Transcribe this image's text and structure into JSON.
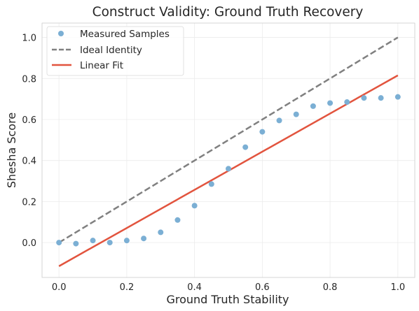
{
  "chart_data": {
    "type": "scatter",
    "title": "Construct Validity: Ground Truth Recovery",
    "xlabel": "Ground Truth Stability",
    "ylabel": "Shesha Score",
    "xlim": [
      -0.05,
      1.05
    ],
    "ylim": [
      -0.17,
      1.07
    ],
    "xticks": [
      "0.0",
      "0.2",
      "0.4",
      "0.6",
      "0.8",
      "1.0"
    ],
    "yticks": [
      "0.0",
      "0.2",
      "0.4",
      "0.6",
      "0.8",
      "1.0"
    ],
    "grid": true,
    "legend_position": "top-left",
    "series": [
      {
        "name": "Measured Samples",
        "kind": "scatter",
        "color": "#7bafd4",
        "x": [
          0.0,
          0.05,
          0.1,
          0.15,
          0.2,
          0.25,
          0.3,
          0.35,
          0.4,
          0.45,
          0.5,
          0.55,
          0.6,
          0.65,
          0.7,
          0.75,
          0.8,
          0.85,
          0.9,
          0.95,
          1.0
        ],
        "y": [
          0.0,
          -0.005,
          0.01,
          0.0,
          0.01,
          0.02,
          0.05,
          0.11,
          0.18,
          0.285,
          0.36,
          0.465,
          0.54,
          0.595,
          0.625,
          0.665,
          0.68,
          0.685,
          0.705,
          0.705,
          0.71
        ]
      },
      {
        "name": "Ideal Identity",
        "kind": "line",
        "style": "dashed",
        "color": "#808080",
        "x": [
          0.0,
          1.0
        ],
        "y": [
          0.0,
          1.0
        ]
      },
      {
        "name": "Linear Fit",
        "kind": "line",
        "style": "solid",
        "color": "#e2543e",
        "x": [
          0.0,
          1.0
        ],
        "y": [
          -0.115,
          0.815
        ]
      }
    ]
  }
}
